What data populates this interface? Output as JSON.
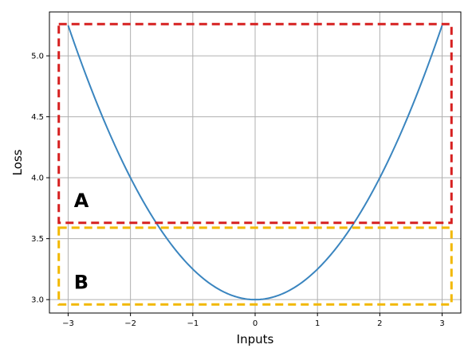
{
  "chart_data": {
    "type": "line",
    "title": "",
    "xlabel": "Inputs",
    "ylabel": "Loss",
    "xlim": [
      -3.3,
      3.3
    ],
    "ylim": [
      2.89,
      5.36
    ],
    "x_ticks": [
      -3,
      -2,
      -1,
      0,
      1,
      2,
      3
    ],
    "x_tick_labels": [
      "−3",
      "−2",
      "−1",
      "0",
      "1",
      "2",
      "3"
    ],
    "y_ticks": [
      3.0,
      3.5,
      4.0,
      4.5,
      5.0
    ],
    "y_tick_labels": [
      "3.0",
      "3.5",
      "4.0",
      "4.5",
      "5.0"
    ],
    "grid": true,
    "series": [
      {
        "color": "#3a85bf",
        "function": "0.25*x^2 + 3",
        "x": [
          -3.0,
          -2.5,
          -2.0,
          -1.5,
          -1.0,
          -0.5,
          0.0,
          0.5,
          1.0,
          1.5,
          2.0,
          2.5,
          3.0
        ],
        "y": [
          5.25,
          4.5625,
          4.0,
          3.5625,
          3.25,
          3.0625,
          3.0,
          3.0625,
          3.25,
          3.5625,
          4.0,
          4.5625,
          5.25
        ]
      }
    ],
    "annotations": [
      {
        "label": "A",
        "color": "#d62020",
        "style": "dashed",
        "x_range": [
          -3.15,
          3.15
        ],
        "y_range": [
          3.63,
          5.26
        ]
      },
      {
        "label": "B",
        "color": "#f2b800",
        "style": "dashed",
        "x_range": [
          -3.15,
          3.15
        ],
        "y_range": [
          2.96,
          3.59
        ]
      }
    ]
  }
}
